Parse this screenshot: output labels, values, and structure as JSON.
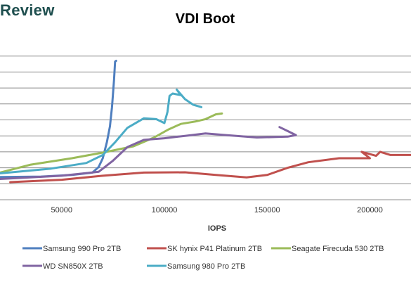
{
  "watermark": "Review",
  "chart_data": {
    "type": "line",
    "title": "VDI Boot",
    "xlabel": "IOPS",
    "ylabel": "",
    "xlim": [
      20000,
      220000
    ],
    "ylim": [
      0,
      10
    ],
    "xticks": [
      50000,
      100000,
      150000,
      200000
    ],
    "xtick_labels": [
      "50000",
      "100000",
      "150000",
      "200000"
    ],
    "yticks": [
      1,
      2,
      3,
      4,
      5,
      6,
      7,
      8,
      9
    ],
    "grid": true,
    "legend_position": "bottom",
    "series": [
      {
        "name": "Samsung 990 Pro 2TB",
        "color": "#4f7fbf",
        "points": [
          [
            20000,
            1.42
          ],
          [
            40000,
            1.45
          ],
          [
            55000,
            1.55
          ],
          [
            65000,
            1.7
          ],
          [
            68000,
            2.05
          ],
          [
            70000,
            2.6
          ],
          [
            72000,
            3.6
          ],
          [
            73500,
            4.6
          ],
          [
            74500,
            5.8
          ],
          [
            75500,
            7.5
          ],
          [
            76000,
            8.65
          ],
          [
            76500,
            8.7
          ]
        ]
      },
      {
        "name": "SK hynix P41 Platinum 2TB",
        "color": "#c0504d",
        "points": [
          [
            25000,
            1.1
          ],
          [
            50000,
            1.25
          ],
          [
            70000,
            1.5
          ],
          [
            90000,
            1.7
          ],
          [
            110000,
            1.72
          ],
          [
            125000,
            1.55
          ],
          [
            140000,
            1.4
          ],
          [
            150000,
            1.55
          ],
          [
            160000,
            2.0
          ],
          [
            170000,
            2.35
          ],
          [
            185000,
            2.6
          ],
          [
            200000,
            2.6
          ],
          [
            196000,
            3.0
          ],
          [
            203000,
            2.75
          ],
          [
            205000,
            3.0
          ],
          [
            210000,
            2.8
          ],
          [
            220000,
            2.8
          ]
        ]
      },
      {
        "name": "Seagate Firecuda 530 2TB",
        "color": "#9bbb59",
        "points": [
          [
            20000,
            1.7
          ],
          [
            35000,
            2.2
          ],
          [
            55000,
            2.6
          ],
          [
            70000,
            2.95
          ],
          [
            85000,
            3.35
          ],
          [
            95000,
            3.9
          ],
          [
            102000,
            4.4
          ],
          [
            108000,
            4.75
          ],
          [
            115000,
            4.9
          ],
          [
            120000,
            5.05
          ],
          [
            125000,
            5.35
          ],
          [
            128000,
            5.4
          ]
        ]
      },
      {
        "name": "WD SN850X 2TB",
        "color": "#8064a2",
        "points": [
          [
            20000,
            1.3
          ],
          [
            50000,
            1.5
          ],
          [
            68000,
            1.75
          ],
          [
            75000,
            2.45
          ],
          [
            82000,
            3.3
          ],
          [
            90000,
            3.75
          ],
          [
            100000,
            3.85
          ],
          [
            110000,
            4.0
          ],
          [
            120000,
            4.15
          ],
          [
            130000,
            4.05
          ],
          [
            145000,
            3.9
          ],
          [
            160000,
            3.95
          ],
          [
            164000,
            4.05
          ],
          [
            160000,
            4.3
          ],
          [
            156000,
            4.55
          ]
        ]
      },
      {
        "name": "Samsung 980 Pro 2TB",
        "color": "#4bacc6",
        "points": [
          [
            20000,
            1.65
          ],
          [
            45000,
            1.95
          ],
          [
            62000,
            2.3
          ],
          [
            70000,
            2.8
          ],
          [
            76000,
            3.6
          ],
          [
            82000,
            4.5
          ],
          [
            90000,
            5.1
          ],
          [
            96000,
            5.05
          ],
          [
            100000,
            4.8
          ],
          [
            101500,
            5.5
          ],
          [
            102500,
            6.5
          ],
          [
            104000,
            6.65
          ],
          [
            108000,
            6.55
          ],
          [
            106000,
            6.9
          ],
          [
            110000,
            6.3
          ],
          [
            114000,
            5.95
          ],
          [
            118000,
            5.8
          ]
        ]
      }
    ]
  }
}
